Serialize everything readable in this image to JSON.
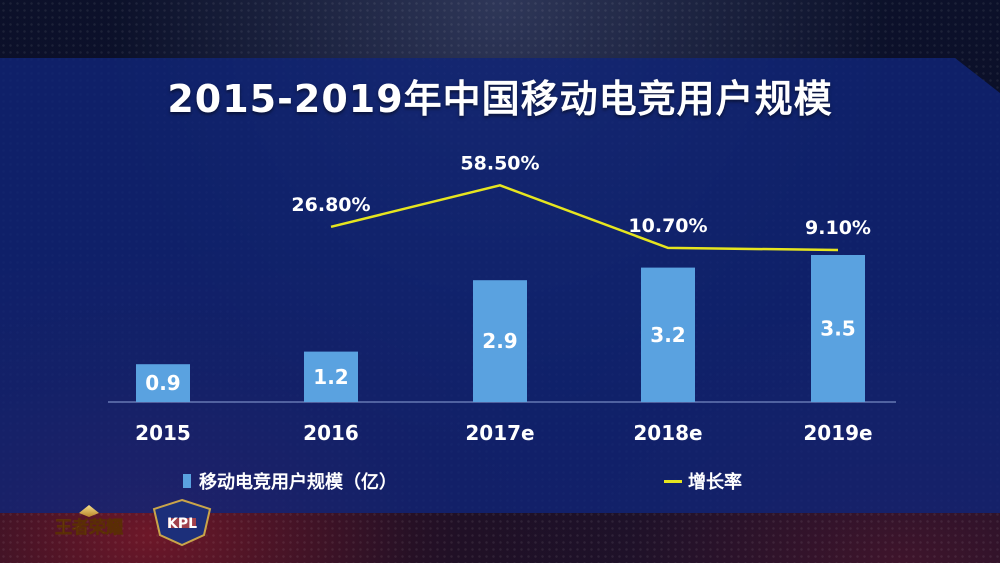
{
  "title": "2015-2019年中国移动电竞用户规模",
  "legend": {
    "bar_label": "移动电竞用户规模（亿）",
    "line_label": "增长率"
  },
  "logos": {
    "game_logo_text": "王者荣耀",
    "kpl_logo_text": "KPL"
  },
  "colors": {
    "bar": "#5aa2e0",
    "line": "#e6e51f",
    "panel": "#10247a",
    "text": "#ffffff"
  },
  "chart_data": {
    "type": "bar",
    "title": "2015-2019年中国移动电竞用户规模",
    "categories": [
      "2015",
      "2016",
      "2017e",
      "2018e",
      "2019e"
    ],
    "series": [
      {
        "name": "移动电竞用户规模（亿）",
        "type": "bar",
        "values": [
          0.9,
          1.2,
          2.9,
          3.2,
          3.5
        ],
        "labels": [
          "0.9",
          "1.2",
          "2.9",
          "3.2",
          "3.5"
        ]
      },
      {
        "name": "增长率",
        "type": "line",
        "values": [
          null,
          26.8,
          58.5,
          10.7,
          9.1
        ],
        "labels": [
          "",
          "26.80%",
          "58.50%",
          "10.70%",
          "9.10%"
        ]
      }
    ],
    "ylim": [
      0,
      3.5
    ],
    "grid": false,
    "legend": "bottom"
  }
}
